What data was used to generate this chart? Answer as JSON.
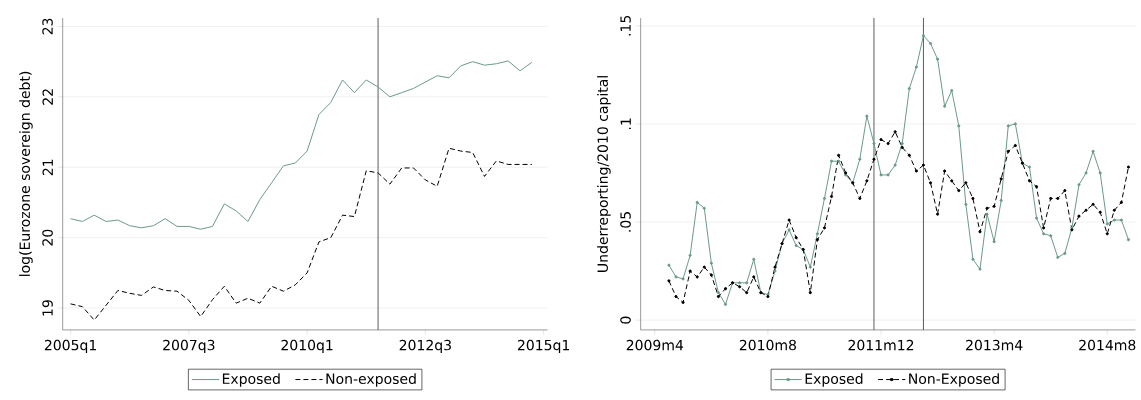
{
  "chart_data": [
    {
      "type": "line",
      "ylabel": "log(Eurozone sovereign debt)",
      "grid": "y",
      "legend": "bottom",
      "x": [
        "2005-01",
        "2005-04",
        "2005-07",
        "2005-10",
        "2006-01",
        "2006-04",
        "2006-07",
        "2006-10",
        "2007-01",
        "2007-04",
        "2007-07",
        "2007-10",
        "2008-01",
        "2008-04",
        "2008-07",
        "2008-10",
        "2009-01",
        "2009-04",
        "2009-07",
        "2009-10",
        "2010-01",
        "2010-04",
        "2010-07",
        "2010-10",
        "2011-01",
        "2011-04",
        "2011-07",
        "2011-10",
        "2012-01",
        "2012-04",
        "2012-07",
        "2012-10",
        "2013-01",
        "2013-04",
        "2013-07",
        "2013-10",
        "2014-01",
        "2014-04",
        "2014-07",
        "2014-10"
      ],
      "xlim": [
        "2004-11",
        "2015-02"
      ],
      "xticks": [
        {
          "value": "2005-01",
          "label": "2005q1"
        },
        {
          "value": "2007-07",
          "label": "2007q3"
        },
        {
          "value": "2010-01",
          "label": "2010q1"
        },
        {
          "value": "2012-07",
          "label": "2012q3"
        },
        {
          "value": "2015-01",
          "label": "2015q1"
        }
      ],
      "ylim": [
        18.69,
        23.12
      ],
      "yticks": [
        19,
        20,
        21,
        22,
        23
      ],
      "ref_lines": [
        {
          "axis": "x",
          "value": "2011-07"
        }
      ],
      "series": [
        {
          "name": "Exposed",
          "color": "#6b9a8b",
          "line_style": "solid",
          "values": [
            20.27,
            20.23,
            20.32,
            20.23,
            20.25,
            20.17,
            20.14,
            20.17,
            20.27,
            20.16,
            20.16,
            20.12,
            20.16,
            20.48,
            20.38,
            20.23,
            20.54,
            20.78,
            21.02,
            21.06,
            21.23,
            21.75,
            21.92,
            22.24,
            22.06,
            22.24,
            22.14,
            22.0,
            22.06,
            22.12,
            22.21,
            22.3,
            22.27,
            22.44,
            22.5,
            22.45,
            22.47,
            22.51,
            22.37,
            22.49
          ]
        },
        {
          "name": "Non-exposed",
          "color": "#000000",
          "line_style": "dashed",
          "values": [
            19.06,
            19.02,
            18.83,
            19.04,
            19.25,
            19.21,
            19.18,
            19.3,
            19.25,
            19.24,
            19.11,
            18.88,
            19.12,
            19.31,
            19.07,
            19.14,
            19.07,
            19.31,
            19.24,
            19.33,
            19.5,
            19.94,
            20.0,
            20.32,
            20.3,
            20.95,
            20.92,
            20.76,
            20.99,
            20.99,
            20.82,
            20.73,
            21.27,
            21.23,
            21.21,
            20.87,
            21.09,
            21.04,
            21.04,
            21.04
          ]
        }
      ]
    },
    {
      "type": "line",
      "ylabel": "Underreporting/2010 capital",
      "grid": "y",
      "legend": "bottom",
      "marker": "circle",
      "x": [
        "2009-06",
        "2009-07",
        "2009-08",
        "2009-09",
        "2009-10",
        "2009-11",
        "2009-12",
        "2010-01",
        "2010-02",
        "2010-03",
        "2010-04",
        "2010-05",
        "2010-06",
        "2010-07",
        "2010-08",
        "2010-09",
        "2010-10",
        "2010-11",
        "2010-12",
        "2011-01",
        "2011-02",
        "2011-03",
        "2011-04",
        "2011-05",
        "2011-06",
        "2011-07",
        "2011-08",
        "2011-09",
        "2011-10",
        "2011-11",
        "2011-12",
        "2012-01",
        "2012-02",
        "2012-03",
        "2012-04",
        "2012-05",
        "2012-06",
        "2012-07",
        "2012-08",
        "2012-09",
        "2012-10",
        "2012-11",
        "2012-12",
        "2013-01",
        "2013-02",
        "2013-03",
        "2013-04",
        "2013-05",
        "2013-06",
        "2013-07",
        "2013-08",
        "2013-09",
        "2013-10",
        "2013-11",
        "2013-12",
        "2014-01",
        "2014-02",
        "2014-03",
        "2014-04",
        "2014-05",
        "2014-06",
        "2014-07",
        "2014-08",
        "2014-09",
        "2014-10",
        "2014-11"
      ],
      "xlim": [
        "2009-02",
        "2014-12"
      ],
      "xticks": [
        {
          "value": "2009-04",
          "label": "2009m4"
        },
        {
          "value": "2010-08",
          "label": "2010m8"
        },
        {
          "value": "2011-12",
          "label": "2011m12"
        },
        {
          "value": "2013-04",
          "label": "2013m4"
        },
        {
          "value": "2014-08",
          "label": "2014m8"
        }
      ],
      "ylim": [
        -0.005,
        0.154
      ],
      "yticks": [
        0,
        {
          "value": 0.05,
          "label": ".05"
        },
        {
          "value": 0.1,
          "label": ".1"
        },
        {
          "value": 0.15,
          "label": ".15"
        }
      ],
      "ref_lines": [
        {
          "axis": "x",
          "value": "2011-11"
        },
        {
          "axis": "x",
          "value": "2012-06"
        }
      ],
      "series": [
        {
          "name": "Exposed",
          "color": "#6b9a8b",
          "line_style": "solid",
          "values": [
            0.028,
            0.022,
            0.021,
            0.033,
            0.06,
            0.057,
            0.029,
            0.014,
            0.008,
            0.019,
            0.019,
            0.019,
            0.031,
            0.014,
            0.013,
            0.025,
            0.039,
            0.046,
            0.038,
            0.036,
            0.027,
            0.044,
            0.062,
            0.081,
            0.081,
            0.074,
            0.07,
            0.082,
            0.104,
            0.09,
            0.074,
            0.074,
            0.079,
            0.09,
            0.118,
            0.129,
            0.145,
            0.141,
            0.133,
            0.109,
            0.117,
            0.099,
            0.059,
            0.031,
            0.026,
            0.054,
            0.04,
            0.061,
            0.099,
            0.1,
            0.08,
            0.078,
            0.052,
            0.044,
            0.043,
            0.032,
            0.034,
            0.047,
            0.069,
            0.075,
            0.086,
            0.075,
            0.049,
            0.051,
            0.051,
            0.041
          ]
        },
        {
          "name": "Non-Exposed",
          "color": "#000000",
          "line_style": "dashed",
          "values": [
            0.02,
            0.012,
            0.009,
            0.025,
            0.022,
            0.027,
            0.023,
            0.012,
            0.016,
            0.019,
            0.017,
            0.014,
            0.022,
            0.014,
            0.012,
            0.027,
            0.039,
            0.051,
            0.042,
            0.036,
            0.014,
            0.041,
            0.047,
            0.063,
            0.084,
            0.075,
            0.07,
            0.062,
            0.071,
            0.082,
            0.092,
            0.09,
            0.096,
            0.088,
            0.084,
            0.076,
            0.079,
            0.07,
            0.054,
            0.076,
            0.071,
            0.066,
            0.07,
            0.062,
            0.045,
            0.057,
            0.058,
            0.072,
            0.086,
            0.089,
            0.08,
            0.071,
            0.068,
            0.047,
            0.062,
            0.062,
            0.066,
            0.046,
            0.053,
            0.056,
            0.059,
            0.055,
            0.044,
            0.056,
            0.06,
            0.078
          ]
        }
      ]
    }
  ]
}
